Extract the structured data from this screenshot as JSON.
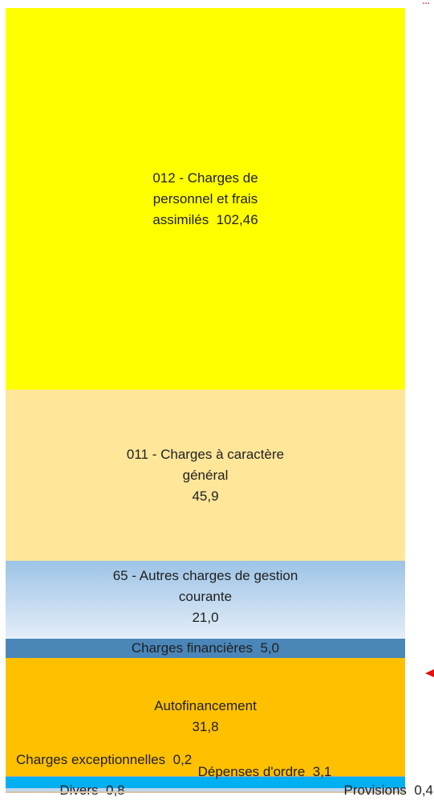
{
  "chart_data": {
    "type": "stacked-bar",
    "series": [
      {
        "name": "012 - Charges de personnel et frais assimilés",
        "color": "#FFFF00",
        "values": [
          102.46
        ],
        "value_labels": [
          "102,46"
        ]
      },
      {
        "name": "011 - Charges à caractère général",
        "color": "#FFE699",
        "values": [
          45.9
        ],
        "value_labels": [
          "45,9"
        ]
      },
      {
        "name": "65 - Autres charges de gestion courante",
        "color": "#9DC3E6",
        "values": [
          21.0
        ],
        "value_labels": [
          "21,0"
        ]
      },
      {
        "name": "Charges financières",
        "color": "#4A86B8",
        "values": [
          5.0
        ],
        "value_labels": [
          "5,0"
        ]
      },
      {
        "name": "Autofinancement",
        "color": "#FFC000",
        "values": [
          31.8
        ],
        "value_labels": [
          "31,8"
        ]
      },
      {
        "name": "Charges exceptionnelles",
        "color": "#A6A6A6",
        "values": [
          0.2
        ],
        "value_labels": [
          "0,2"
        ]
      },
      {
        "name": "Dépenses d'ordre",
        "color": "#00B0F0",
        "values": [
          3.1
        ],
        "value_labels": [
          "3,1"
        ]
      },
      {
        "name": "Divers",
        "color": "#BDD7EE",
        "values": [
          0.8
        ],
        "value_labels": [
          "0,8"
        ]
      },
      {
        "name": "Provisions",
        "color": "#D9C3A5",
        "values": [
          0.4
        ],
        "value_labels": [
          "0,4"
        ]
      }
    ]
  }
}
